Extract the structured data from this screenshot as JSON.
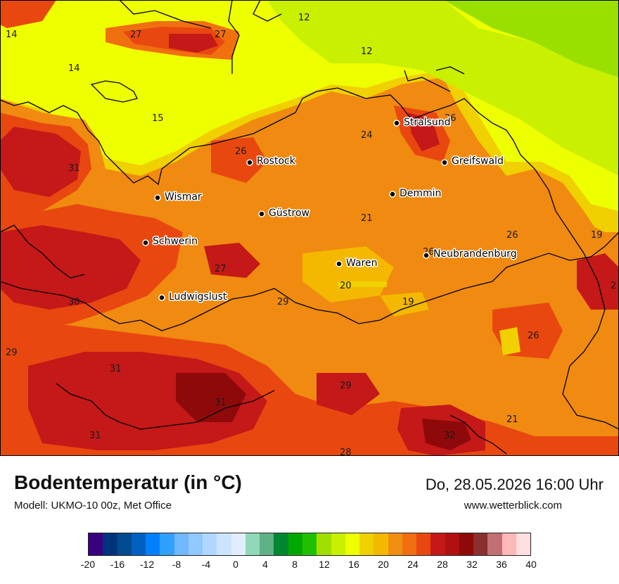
{
  "title": "Bodentemperatur (in °C)",
  "model": "Modell: UKMO-10 00z, Met Office",
  "datetime": "Do, 28.05.2026 16:00 Uhr",
  "website": "www.wetterblick.com",
  "colors": {
    "sea_cool": "#c8f000",
    "sea_yellow": "#eeff00",
    "sea_green": "#99e000",
    "land_orange": "#f08a10",
    "land_deep": "#e84810",
    "land_red": "#c51818",
    "land_dark": "#8e0a0a"
  },
  "legend": {
    "colors": [
      "#3a0080",
      "#00347a",
      "#004a90",
      "#0060c0",
      "#0080ff",
      "#30a0ff",
      "#70b8ff",
      "#90c8ff",
      "#b0d8ff",
      "#cce4ff",
      "#e0eeff",
      "#90d8b8",
      "#60b088",
      "#008830",
      "#00a800",
      "#20c000",
      "#a0e000",
      "#c8f000",
      "#eeff00",
      "#f0d000",
      "#f4b800",
      "#f09010",
      "#f07010",
      "#e84810",
      "#c51818",
      "#b01010",
      "#8e0a0a",
      "#8a3030",
      "#c07070",
      "#ffb8b8",
      "#ffe0e0"
    ],
    "ticks": [
      "-20",
      "-16",
      "-12",
      "-8",
      "-4",
      "0",
      "4",
      "8",
      "12",
      "16",
      "20",
      "24",
      "28",
      "32",
      "36",
      "40"
    ]
  },
  "cities": [
    {
      "name": "Stralsund"
    },
    {
      "name": "Rostock"
    },
    {
      "name": "Greifswald"
    },
    {
      "name": "Wismar"
    },
    {
      "name": "Demmin"
    },
    {
      "name": "Güstrow"
    },
    {
      "name": "Schwerin"
    },
    {
      "name": "Neubrandenburg"
    },
    {
      "name": "Waren"
    },
    {
      "name": "Ludwigslust"
    }
  ],
  "values": [
    {
      "v": "14"
    },
    {
      "v": "27"
    },
    {
      "v": "27"
    },
    {
      "v": "12"
    },
    {
      "v": "12"
    },
    {
      "v": "14"
    },
    {
      "v": "15"
    },
    {
      "v": "26"
    },
    {
      "v": "24"
    },
    {
      "v": "26"
    },
    {
      "v": "31"
    },
    {
      "v": "21"
    },
    {
      "v": "26"
    },
    {
      "v": "19"
    },
    {
      "v": "26"
    },
    {
      "v": "27"
    },
    {
      "v": "20"
    },
    {
      "v": "30"
    },
    {
      "v": "29"
    },
    {
      "v": "19"
    },
    {
      "v": "26"
    },
    {
      "v": "29"
    },
    {
      "v": "31"
    },
    {
      "v": "29"
    },
    {
      "v": "31"
    },
    {
      "v": "31"
    },
    {
      "v": "32"
    },
    {
      "v": "21"
    },
    {
      "v": "28"
    },
    {
      "v": "2"
    }
  ]
}
